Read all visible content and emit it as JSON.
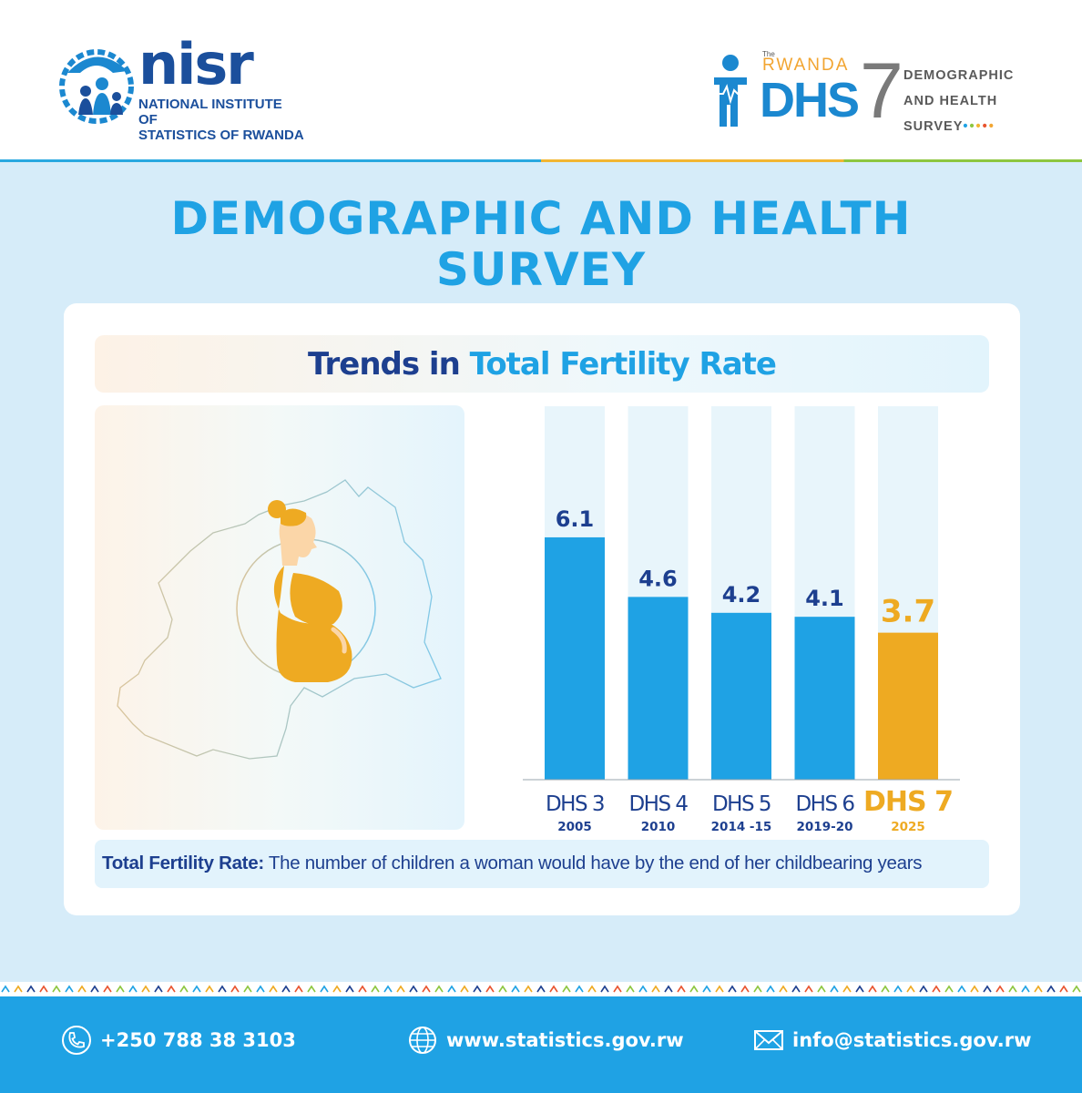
{
  "header": {
    "nisr_logo": {
      "wordmark": "nisr",
      "line1": "NATIONAL INSTITUTE OF",
      "line2": "STATISTICS OF RWANDA"
    },
    "dhs_logo": {
      "the": "The",
      "rwanda": "RWANDA",
      "dhs": "DHS",
      "seven": "7",
      "line1": "DEMOGRAPHIC",
      "line2": "AND HEALTH",
      "line3": "SURVEY"
    }
  },
  "title": {
    "line1": "DEMOGRAPHIC AND HEALTH",
    "line2": "SURVEY"
  },
  "subtitle": {
    "part1": "Trends in ",
    "part2": "Total Fertility Rate"
  },
  "chart_data": {
    "type": "bar",
    "categories": [
      "DHS 3",
      "DHS 4",
      "DHS 5",
      "DHS 6",
      "DHS 7"
    ],
    "years": [
      "2005",
      "2010",
      "2014 -15",
      "2019-20",
      "2025"
    ],
    "values": [
      6.1,
      4.6,
      4.2,
      4.1,
      3.7
    ],
    "value_labels": [
      "6.1",
      "4.6",
      "4.2",
      "4.1",
      "3.7"
    ],
    "highlight_index": 4,
    "ylim": [
      0,
      9.4
    ],
    "colors": {
      "bar": "#1fa2e4",
      "highlight": "#eeaa22",
      "track": "#e8f5fb",
      "label": "#1d3f8f"
    }
  },
  "definition": {
    "term": "Total Fertility Rate:",
    "text": " The number of children a woman would have by the end of her childbearing years"
  },
  "footer": {
    "phone": "+250 788 38 3103",
    "website": "www.statistics.gov.rw",
    "email": "info@statistics.gov.rw"
  },
  "colors": {
    "primary_blue": "#1fa2e4",
    "dark_blue": "#1d3f8f",
    "orange": "#eeaa22"
  }
}
